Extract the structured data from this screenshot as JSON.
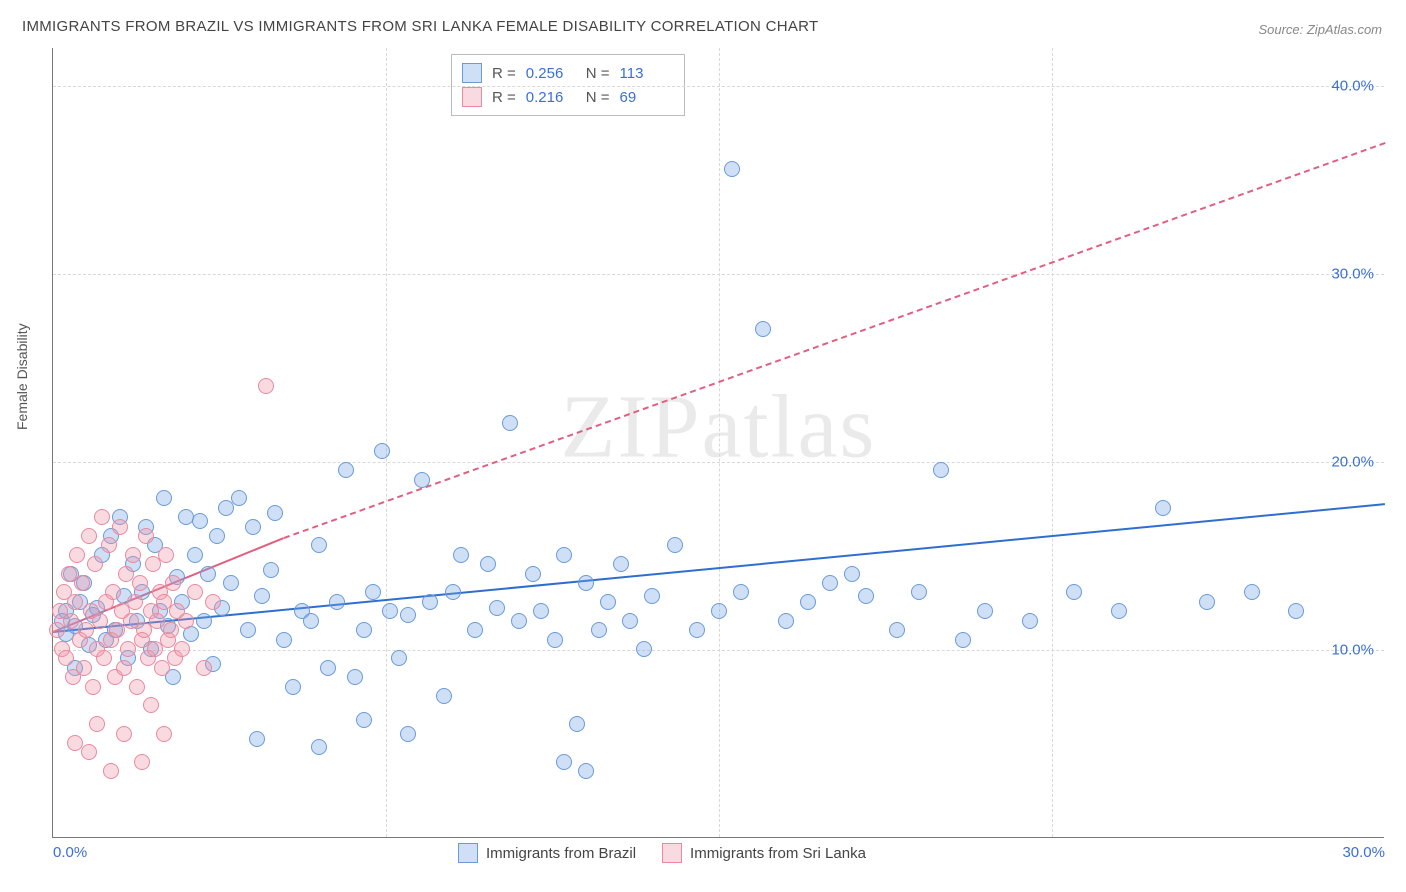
{
  "title": "IMMIGRANTS FROM BRAZIL VS IMMIGRANTS FROM SRI LANKA FEMALE DISABILITY CORRELATION CHART",
  "source": "Source: ZipAtlas.com",
  "watermark": "ZIPatlas",
  "y_axis_label": "Female Disability",
  "chart": {
    "type": "scatter",
    "xlim": [
      0,
      30
    ],
    "ylim": [
      0,
      42
    ],
    "x_ticks": [
      {
        "v": 0,
        "l": "0.0%"
      },
      {
        "v": 30,
        "l": "30.0%"
      }
    ],
    "y_ticks": [
      {
        "v": 10,
        "l": "10.0%"
      },
      {
        "v": 20,
        "l": "20.0%"
      },
      {
        "v": 30,
        "l": "30.0%"
      },
      {
        "v": 40,
        "l": "40.0%"
      }
    ],
    "grid_v": [
      7.5,
      15,
      22.5
    ],
    "grid_color": "#d8d8d8",
    "background_color": "#ffffff",
    "marker_radius": 8,
    "marker_border_width": 1.5,
    "series": [
      {
        "name": "Immigrants from Brazil",
        "fill": "rgba(115,163,230,0.35)",
        "stroke": "#6a9bd8",
        "trend": {
          "color": "#2f6ed0",
          "width": 2.5,
          "x1": 0,
          "y1": 11.0,
          "x2": 30,
          "y2": 17.8,
          "dash": false,
          "extend_dash": false
        },
        "points": [
          [
            0.2,
            11.5
          ],
          [
            0.3,
            12.0
          ],
          [
            0.3,
            10.8
          ],
          [
            0.4,
            14.0
          ],
          [
            0.5,
            11.2
          ],
          [
            0.5,
            9.0
          ],
          [
            0.6,
            12.5
          ],
          [
            0.7,
            13.5
          ],
          [
            0.8,
            10.2
          ],
          [
            0.9,
            11.8
          ],
          [
            1.0,
            12.2
          ],
          [
            1.1,
            15.0
          ],
          [
            1.2,
            10.5
          ],
          [
            1.3,
            16.0
          ],
          [
            1.4,
            11.0
          ],
          [
            1.5,
            17.0
          ],
          [
            1.6,
            12.8
          ],
          [
            1.7,
            9.5
          ],
          [
            1.8,
            14.5
          ],
          [
            1.9,
            11.5
          ],
          [
            2.0,
            13.0
          ],
          [
            2.1,
            16.5
          ],
          [
            2.2,
            10.0
          ],
          [
            2.3,
            15.5
          ],
          [
            2.4,
            12.0
          ],
          [
            2.5,
            18.0
          ],
          [
            2.6,
            11.2
          ],
          [
            2.7,
            8.5
          ],
          [
            2.8,
            13.8
          ],
          [
            2.9,
            12.5
          ],
          [
            3.0,
            17.0
          ],
          [
            3.1,
            10.8
          ],
          [
            3.2,
            15.0
          ],
          [
            3.3,
            16.8
          ],
          [
            3.4,
            11.5
          ],
          [
            3.5,
            14.0
          ],
          [
            3.6,
            9.2
          ],
          [
            3.7,
            16.0
          ],
          [
            3.8,
            12.2
          ],
          [
            3.9,
            17.5
          ],
          [
            4.0,
            13.5
          ],
          [
            4.2,
            18.0
          ],
          [
            4.4,
            11.0
          ],
          [
            4.5,
            16.5
          ],
          [
            4.7,
            12.8
          ],
          [
            4.9,
            14.2
          ],
          [
            5.0,
            17.2
          ],
          [
            5.2,
            10.5
          ],
          [
            5.4,
            8.0
          ],
          [
            5.6,
            12.0
          ],
          [
            5.8,
            11.5
          ],
          [
            6.0,
            15.5
          ],
          [
            6.2,
            9.0
          ],
          [
            6.4,
            12.5
          ],
          [
            6.6,
            19.5
          ],
          [
            6.8,
            8.5
          ],
          [
            7.0,
            11.0
          ],
          [
            7.2,
            13.0
          ],
          [
            7.4,
            20.5
          ],
          [
            7.6,
            12.0
          ],
          [
            7.8,
            9.5
          ],
          [
            8.0,
            11.8
          ],
          [
            8.3,
            19.0
          ],
          [
            8.5,
            12.5
          ],
          [
            8.8,
            7.5
          ],
          [
            9.0,
            13.0
          ],
          [
            9.2,
            15.0
          ],
          [
            9.5,
            11.0
          ],
          [
            9.8,
            14.5
          ],
          [
            10.0,
            12.2
          ],
          [
            10.3,
            22.0
          ],
          [
            10.5,
            11.5
          ],
          [
            10.8,
            14.0
          ],
          [
            11.0,
            12.0
          ],
          [
            11.3,
            10.5
          ],
          [
            11.5,
            15.0
          ],
          [
            11.8,
            6.0
          ],
          [
            12.0,
            13.5
          ],
          [
            12.3,
            11.0
          ],
          [
            12.5,
            12.5
          ],
          [
            12.8,
            14.5
          ],
          [
            13.0,
            11.5
          ],
          [
            13.3,
            10.0
          ],
          [
            13.5,
            12.8
          ],
          [
            14.0,
            15.5
          ],
          [
            14.5,
            11.0
          ],
          [
            15.0,
            12.0
          ],
          [
            15.3,
            35.5
          ],
          [
            15.5,
            13.0
          ],
          [
            16.0,
            27.0
          ],
          [
            16.5,
            11.5
          ],
          [
            17.0,
            12.5
          ],
          [
            17.5,
            13.5
          ],
          [
            18.0,
            14.0
          ],
          [
            18.3,
            12.8
          ],
          [
            19.0,
            11.0
          ],
          [
            19.5,
            13.0
          ],
          [
            20.0,
            19.5
          ],
          [
            20.5,
            10.5
          ],
          [
            21.0,
            12.0
          ],
          [
            22.0,
            11.5
          ],
          [
            23.0,
            13.0
          ],
          [
            24.0,
            12.0
          ],
          [
            25.0,
            17.5
          ],
          [
            26.0,
            12.5
          ],
          [
            27.0,
            13.0
          ],
          [
            28.0,
            12.0
          ],
          [
            4.6,
            5.2
          ],
          [
            6.0,
            4.8
          ],
          [
            7.0,
            6.2
          ],
          [
            8.0,
            5.5
          ],
          [
            11.5,
            4.0
          ],
          [
            12.0,
            3.5
          ]
        ]
      },
      {
        "name": "Immigrants from Sri Lanka",
        "fill": "rgba(240,150,170,0.35)",
        "stroke": "#e88aa0",
        "trend": {
          "color": "#e06080",
          "width": 2.5,
          "x1": 0,
          "y1": 11.0,
          "x2": 5.2,
          "y2": 16.0,
          "dash": false,
          "extend_dash": true,
          "dash_x2": 30,
          "dash_y2": 37.0
        },
        "points": [
          [
            0.1,
            11.0
          ],
          [
            0.15,
            12.0
          ],
          [
            0.2,
            10.0
          ],
          [
            0.25,
            13.0
          ],
          [
            0.3,
            9.5
          ],
          [
            0.35,
            14.0
          ],
          [
            0.4,
            11.5
          ],
          [
            0.45,
            8.5
          ],
          [
            0.5,
            12.5
          ],
          [
            0.55,
            15.0
          ],
          [
            0.6,
            10.5
          ],
          [
            0.65,
            13.5
          ],
          [
            0.7,
            9.0
          ],
          [
            0.75,
            11.0
          ],
          [
            0.8,
            16.0
          ],
          [
            0.85,
            12.0
          ],
          [
            0.9,
            8.0
          ],
          [
            0.95,
            14.5
          ],
          [
            1.0,
            10.0
          ],
          [
            1.05,
            11.5
          ],
          [
            1.1,
            17.0
          ],
          [
            1.15,
            9.5
          ],
          [
            1.2,
            12.5
          ],
          [
            1.25,
            15.5
          ],
          [
            1.3,
            10.5
          ],
          [
            1.35,
            13.0
          ],
          [
            1.4,
            8.5
          ],
          [
            1.45,
            11.0
          ],
          [
            1.5,
            16.5
          ],
          [
            1.55,
            12.0
          ],
          [
            1.6,
            9.0
          ],
          [
            1.65,
            14.0
          ],
          [
            1.7,
            10.0
          ],
          [
            1.75,
            11.5
          ],
          [
            1.8,
            15.0
          ],
          [
            1.85,
            12.5
          ],
          [
            1.9,
            8.0
          ],
          [
            1.95,
            13.5
          ],
          [
            2.0,
            10.5
          ],
          [
            2.05,
            11.0
          ],
          [
            2.1,
            16.0
          ],
          [
            2.15,
            9.5
          ],
          [
            2.2,
            12.0
          ],
          [
            2.25,
            14.5
          ],
          [
            2.3,
            10.0
          ],
          [
            2.35,
            11.5
          ],
          [
            2.4,
            13.0
          ],
          [
            2.45,
            9.0
          ],
          [
            2.5,
            12.5
          ],
          [
            2.55,
            15.0
          ],
          [
            2.6,
            10.5
          ],
          [
            2.65,
            11.0
          ],
          [
            2.7,
            13.5
          ],
          [
            2.75,
            9.5
          ],
          [
            2.8,
            12.0
          ],
          [
            2.9,
            10.0
          ],
          [
            3.0,
            11.5
          ],
          [
            3.2,
            13.0
          ],
          [
            3.4,
            9.0
          ],
          [
            3.6,
            12.5
          ],
          [
            0.5,
            5.0
          ],
          [
            0.8,
            4.5
          ],
          [
            1.0,
            6.0
          ],
          [
            1.3,
            3.5
          ],
          [
            1.6,
            5.5
          ],
          [
            2.0,
            4.0
          ],
          [
            2.2,
            7.0
          ],
          [
            2.5,
            5.5
          ],
          [
            4.8,
            24.0
          ]
        ]
      }
    ]
  },
  "info_box": {
    "rows": [
      {
        "swatch_fill": "rgba(115,163,230,0.35)",
        "swatch_stroke": "#6a9bd8",
        "r_label": "R =",
        "r": "0.256",
        "n_label": "N =",
        "n": "113"
      },
      {
        "swatch_fill": "rgba(240,150,170,0.35)",
        "swatch_stroke": "#e88aa0",
        "r_label": "R =",
        "r": "0.216",
        "n_label": "N =",
        "n": "69"
      }
    ]
  },
  "bottom_legend": [
    {
      "swatch_fill": "rgba(115,163,230,0.35)",
      "swatch_stroke": "#6a9bd8",
      "label": "Immigrants from Brazil"
    },
    {
      "swatch_fill": "rgba(240,150,170,0.35)",
      "swatch_stroke": "#e88aa0",
      "label": "Immigrants from Sri Lanka"
    }
  ]
}
